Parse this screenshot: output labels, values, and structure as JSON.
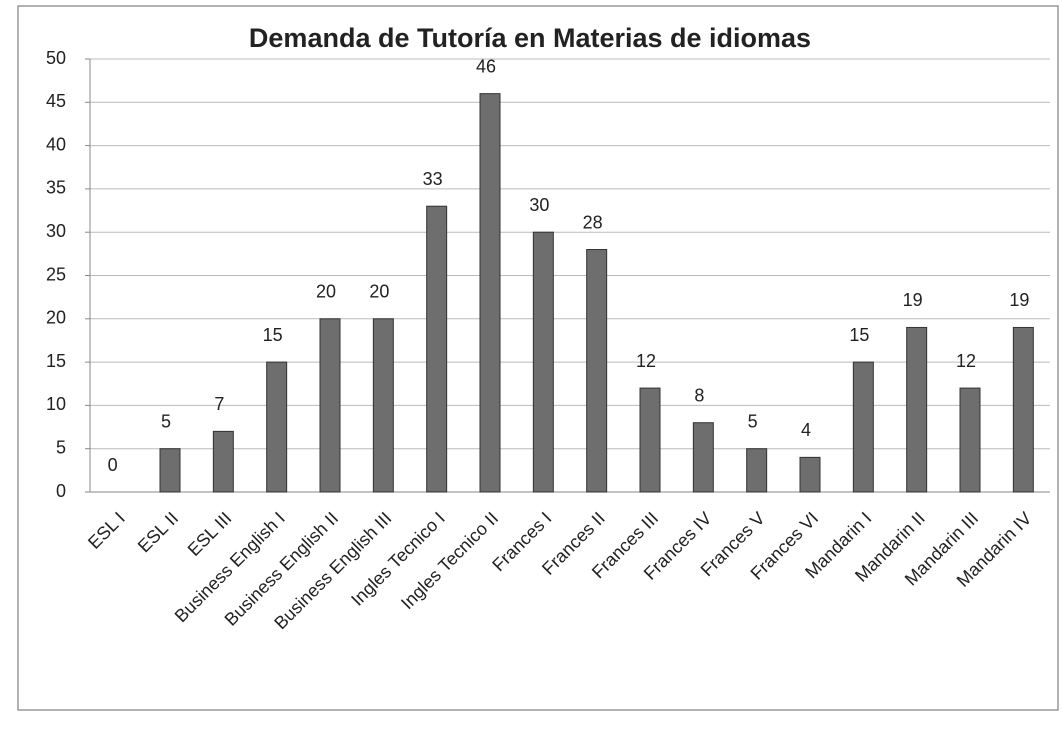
{
  "chart_data": {
    "type": "bar",
    "title": "Demanda de Tutoría en Materias de idiomas",
    "categories": [
      "ESL I",
      "ESL II",
      "ESL III",
      "Business English I",
      "Business English II",
      "Business English III",
      "Ingles Tecnico I",
      "Ingles Tecnico II",
      "Frances I",
      "Frances II",
      "Frances III",
      "Frances IV",
      "Frances V",
      "Frances VI",
      "Mandarin I",
      "Mandarin II",
      "Mandarin III",
      "Mandarin IV"
    ],
    "values": [
      0,
      5,
      7,
      15,
      20,
      20,
      33,
      46,
      30,
      28,
      12,
      8,
      5,
      4,
      15,
      19,
      12,
      19
    ],
    "color": "#6e6e6e",
    "ylim": [
      0,
      50
    ],
    "yticks": [
      0,
      5,
      10,
      15,
      20,
      25,
      30,
      35,
      40,
      45,
      50
    ],
    "grid": true
  }
}
